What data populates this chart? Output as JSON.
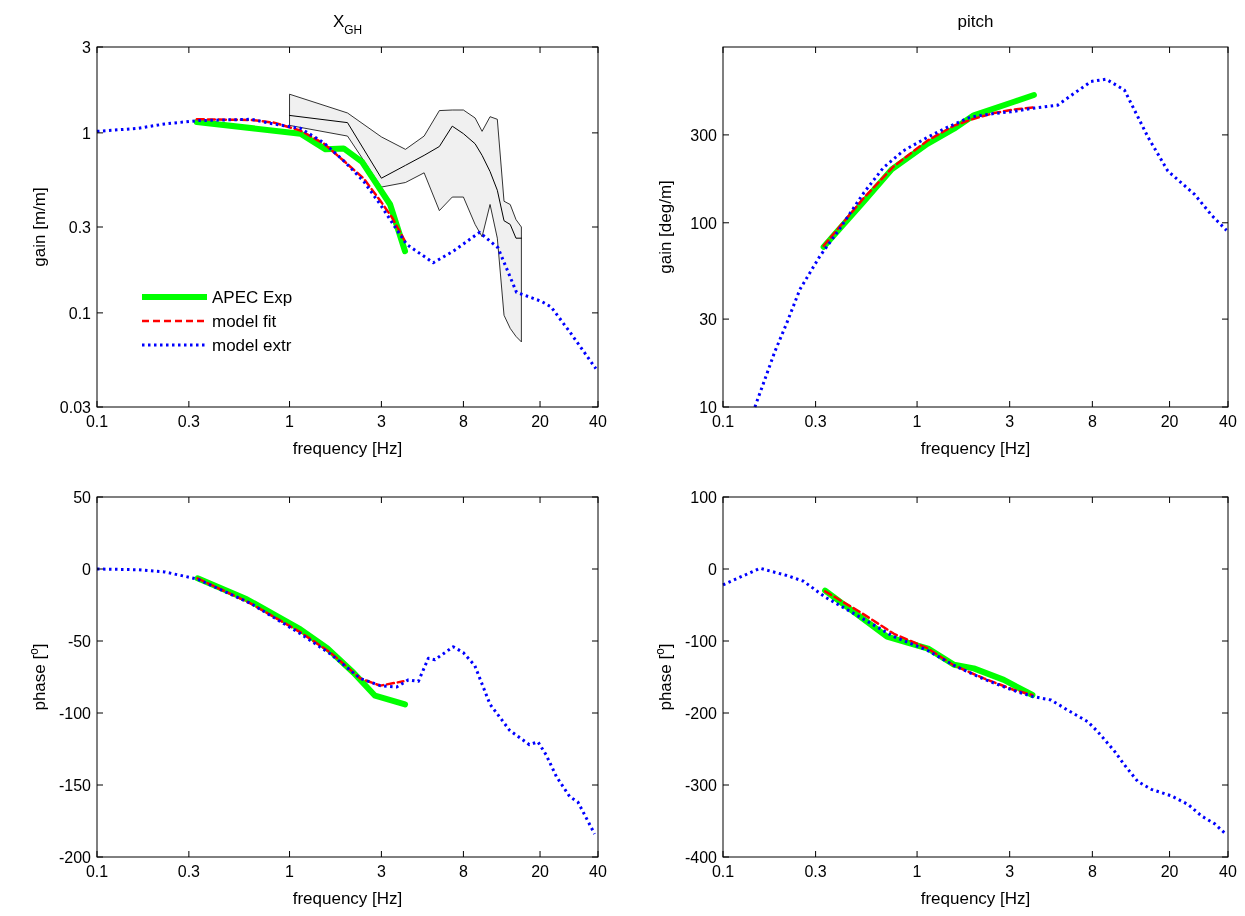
{
  "chart_data": [
    {
      "type": "line",
      "title": "X$_{GH}$",
      "xlabel": "frequency [Hz]",
      "ylabel": "gain [m/m]",
      "log": "xy",
      "xlim": [
        0.1,
        40
      ],
      "xticks": [
        0.1,
        0.3,
        1,
        3,
        8,
        20,
        40
      ],
      "ylim": [
        0.03,
        3
      ],
      "yticks": [
        0.03,
        0.1,
        0.3,
        1,
        3
      ],
      "legend": "bottom left",
      "series": [
        {
          "color": "#000000",
          "line_style": "solid",
          "x": [
            1,
            2,
            3,
            4,
            5,
            6,
            7,
            8,
            9.2,
            10,
            11,
            12,
            13,
            14,
            15,
            16
          ],
          "values": [
            1.25,
            1.14,
            0.56,
            0.66,
            0.75,
            0.84,
            1.09,
            0.99,
            0.87,
            0.75,
            0.61,
            0.48,
            0.325,
            0.31,
            0.26,
            0.26
          ],
          "lower": [
            1.1,
            0.96,
            0.5,
            0.53,
            0.6,
            0.37,
            0.44,
            0.44,
            0.31,
            0.265,
            0.4,
            0.26,
            0.097,
            0.082,
            0.074,
            0.069
          ],
          "upper": [
            1.64,
            1.29,
            0.95,
            0.81,
            0.96,
            1.33,
            1.34,
            1.34,
            1.21,
            1.02,
            1.23,
            1.19,
            0.417,
            0.4,
            0.33,
            0.3
          ]
        },
        {
          "name": "APEC Exp",
          "color": "#00ff00",
          "line_style": "solid",
          "x": [
            0.33,
            1.14,
            1.54,
            1.91,
            2.38,
            3.33,
            3.98
          ],
          "values": [
            1.15,
            0.99,
            0.81,
            0.82,
            0.69,
            0.4,
            0.22
          ]
        },
        {
          "name": "model fit",
          "color": "#ff0000",
          "line_style": "dashed",
          "x": [
            0.33,
            0.63,
            0.83,
            1.14,
            1.51,
            1.91,
            2.42,
            2.96,
            3.4,
            3.98
          ],
          "values": [
            1.19,
            1.18,
            1.14,
            1.03,
            0.87,
            0.7,
            0.56,
            0.42,
            0.34,
            0.25
          ]
        },
        {
          "name": "model extr",
          "color": "#0000ff",
          "line_style": "dotted",
          "x": [
            0.1,
            0.163,
            0.224,
            0.333,
            0.63,
            0.83,
            1.14,
            1.51,
            1.91,
            2.42,
            2.96,
            3.6,
            4.06,
            5.58,
            7.08,
            9.7,
            12.1,
            15.1,
            20.3,
            22.8,
            28.4,
            39
          ],
          "values": [
            1.02,
            1.06,
            1.12,
            1.17,
            1.19,
            1.12,
            1.06,
            0.88,
            0.7,
            0.54,
            0.4,
            0.29,
            0.24,
            0.19,
            0.22,
            0.28,
            0.23,
            0.13,
            0.116,
            0.108,
            0.079,
            0.049
          ]
        }
      ]
    },
    {
      "type": "line",
      "title": "pitch",
      "xlabel": "frequency [Hz]",
      "ylabel": "gain [deg/m]",
      "log": "xy",
      "xlim": [
        0.1,
        40
      ],
      "xticks": [
        0.1,
        0.3,
        1,
        3,
        8,
        20,
        40
      ],
      "ylim": [
        10,
        900
      ],
      "yticks": [
        10,
        30,
        100,
        300
      ],
      "series": [
        {
          "color": "#00ff00",
          "line_style": "solid",
          "x": [
            0.33,
            0.4,
            0.53,
            0.74,
            1.13,
            1.55,
            1.96,
            3.16,
            4.0
          ],
          "values": [
            74,
            93,
            130,
            195,
            268,
            324,
            383,
            454,
            494
          ]
        },
        {
          "color": "#ff0000",
          "line_style": "dashed",
          "x": [
            0.33,
            0.53,
            0.76,
            1.13,
            1.55,
            1.96,
            2.49,
            3.16,
            3.94
          ],
          "values": [
            75,
            136,
            203,
            279,
            337,
            367,
            394,
            412,
            423
          ]
        },
        {
          "color": "#0000ff",
          "line_style": "dotted",
          "x": [
            0.146,
            0.161,
            0.185,
            0.213,
            0.249,
            0.316,
            0.4,
            0.53,
            0.67,
            0.85,
            1.13,
            1.43,
            1.89,
            2.49,
            3.04,
            3.85,
            5.3,
            6.46,
            7.88,
            9.42,
            11.7,
            13.2,
            15.5,
            19.6,
            27,
            32.9,
            39.3
          ],
          "values": [
            10,
            13.3,
            20,
            28.5,
            43.5,
            66,
            93,
            145,
            199,
            246,
            291,
            330,
            375,
            392,
            400,
            417,
            435,
            505,
            585,
            602,
            526,
            408,
            291,
            191,
            142,
            110,
            91
          ]
        }
      ]
    },
    {
      "type": "line",
      "xlabel": "frequency [Hz]",
      "ylabel": "phase [$^{o}$]",
      "log": "x",
      "xlim": [
        0.1,
        40
      ],
      "xticks": [
        0.1,
        0.3,
        1,
        3,
        8,
        20,
        40
      ],
      "ylim": [
        -200,
        50
      ],
      "yticks": [
        -200,
        -150,
        -100,
        -50,
        0,
        50
      ],
      "series": [
        {
          "color": "#00ff00",
          "line_style": "solid",
          "x": [
            0.333,
            0.6,
            1.14,
            1.57,
            2.15,
            2.78,
            3.98
          ],
          "values": [
            -6.5,
            -21,
            -42,
            -55,
            -72,
            -88,
            -94
          ]
        },
        {
          "color": "#ff0000",
          "line_style": "dashed",
          "x": [
            0.333,
            0.63,
            1.14,
            1.63,
            2.33,
            2.96,
            3.9
          ],
          "values": [
            -6.5,
            -24,
            -44,
            -58,
            -76,
            -81,
            -78
          ]
        },
        {
          "color": "#0000ff",
          "line_style": "dotted",
          "x": [
            0.1,
            0.163,
            0.224,
            0.333,
            0.63,
            1.14,
            1.63,
            2.33,
            2.96,
            3.6,
            4.14,
            4.67,
            5.26,
            5.69,
            7.08,
            7.98,
            9.16,
            11.0,
            13.9,
            17.6,
            19.5,
            21.5,
            24.3,
            28.5,
            31.5,
            34.8,
            38.4
          ],
          "values": [
            0,
            -0.5,
            -2,
            -7,
            -24,
            -45,
            -59,
            -76,
            -81,
            -82,
            -77,
            -78,
            -62,
            -63,
            -54,
            -58,
            -67,
            -94,
            -112,
            -122,
            -120,
            -129,
            -144,
            -158,
            -162,
            -173,
            -184
          ]
        }
      ]
    },
    {
      "type": "line",
      "xlabel": "frequency [Hz]",
      "ylabel": "phase [$^{o}$]",
      "log": "x",
      "xlim": [
        0.1,
        40
      ],
      "xticks": [
        0.1,
        0.3,
        1,
        3,
        8,
        20,
        40
      ],
      "ylim": [
        -400,
        100
      ],
      "yticks": [
        -400,
        -300,
        -200,
        -100,
        0,
        100
      ],
      "series": [
        {
          "color": "#00ff00",
          "line_style": "solid",
          "x": [
            0.336,
            0.7,
            1.15,
            1.55,
            1.96,
            2.8,
            3.93
          ],
          "values": [
            -30,
            -94,
            -111,
            -133,
            -138,
            -154,
            -175
          ]
        },
        {
          "color": "#ff0000",
          "line_style": "dashed",
          "x": [
            0.336,
            0.51,
            0.76,
            1.13,
            1.55,
            2.21,
            3.16,
            3.93
          ],
          "values": [
            -31,
            -60,
            -90,
            -110,
            -134,
            -152,
            -168,
            -175
          ]
        },
        {
          "color": "#0000ff",
          "line_style": "dotted",
          "x": [
            0.1,
            0.155,
            0.213,
            0.26,
            0.336,
            0.51,
            0.76,
            1.13,
            1.55,
            2.21,
            3.16,
            3.93,
            4.9,
            5.97,
            7.57,
            8.53,
            10.4,
            11.7,
            13.7,
            16.1,
            20.4,
            24.9,
            29.2,
            34.2,
            39.3
          ],
          "values": [
            -22,
            1,
            -9,
            -17,
            -39,
            -67,
            -94,
            -113,
            -134,
            -153,
            -169,
            -177,
            -182,
            -196,
            -212,
            -226,
            -253,
            -272,
            -295,
            -306,
            -315,
            -327,
            -343,
            -354,
            -369
          ]
        }
      ]
    }
  ]
}
